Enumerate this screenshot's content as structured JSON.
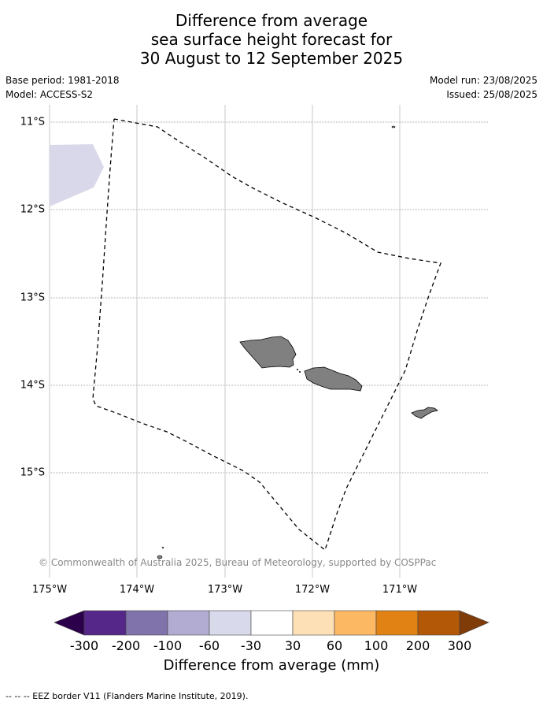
{
  "title": {
    "line1": "Difference from average",
    "line2": "sea surface height forecast for",
    "line3": "30 August to 12 September 2025"
  },
  "meta": {
    "base_period": "Base period: 1981-2018",
    "model": "Model: ACCESS-S2",
    "model_run": "Model run: 23/08/2025",
    "issued": "Issued: 25/08/2025"
  },
  "map": {
    "lat_ticks": [
      "11°S",
      "12°S",
      "13°S",
      "14°S",
      "15°S"
    ],
    "lon_ticks": [
      "175°W",
      "174°W",
      "173°W",
      "172°W",
      "171°W"
    ],
    "copyright": "© Commonwealth of Australia 2025, Bureau of Meteorology, supported by COSPPac",
    "land_color": "#808080",
    "anomaly_color": "#d8d8ea"
  },
  "colorbar": {
    "labels": [
      "-300",
      "-200",
      "-100",
      "-60",
      "-30",
      "30",
      "60",
      "100",
      "200",
      "300"
    ],
    "colors": [
      "#2d004b",
      "#542788",
      "#8073ac",
      "#b2abd2",
      "#d8daeb",
      "#ffffff",
      "#fee0b6",
      "#fdb863",
      "#e08214",
      "#b35806",
      "#7f3b08"
    ],
    "title": "Difference from average (mm)"
  },
  "footnote": "--  --  -- EEZ border V11 (Flanders Marine Institute, 2019)."
}
